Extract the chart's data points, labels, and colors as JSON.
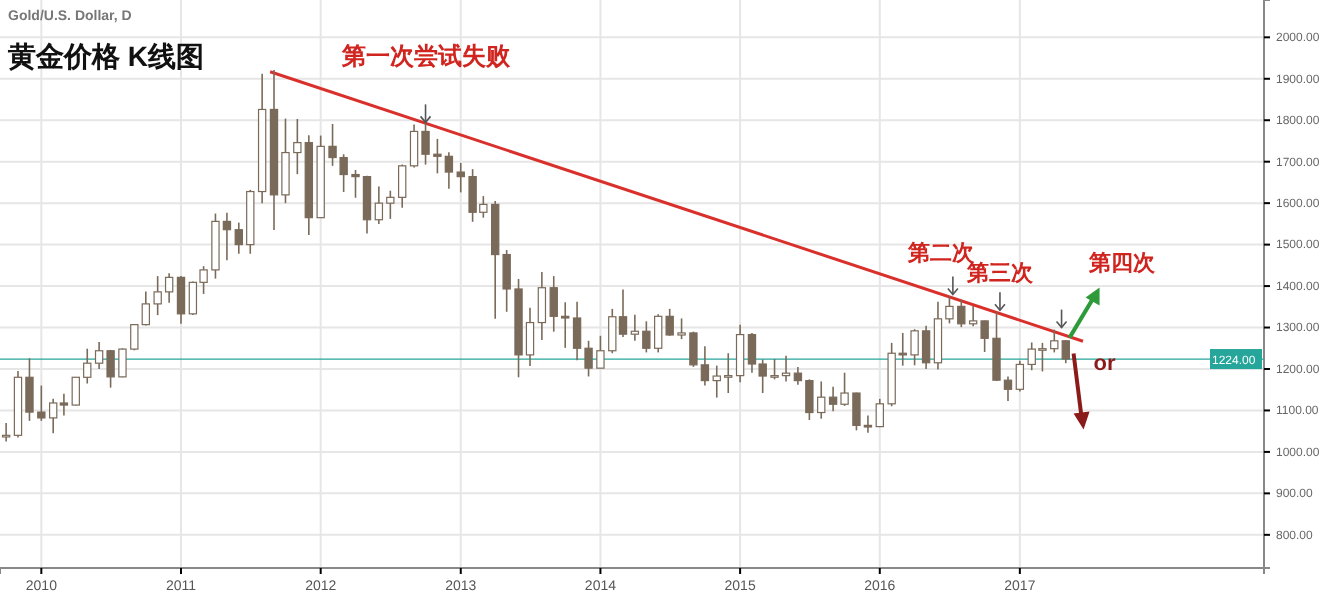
{
  "chart_data": {
    "type": "candlestick",
    "title": "黄金价格 K线图",
    "subtitle": "Gold/U.S. Dollar, D",
    "series": [
      {
        "type": "candlestick",
        "color": "#7a6a5a",
        "x": [
          "2009-10",
          "2009-11",
          "2009-12",
          "2010-01",
          "2010-02",
          "2010-03",
          "2010-04",
          "2010-05",
          "2010-06",
          "2010-07",
          "2010-08",
          "2010-09",
          "2010-10",
          "2010-11",
          "2010-12",
          "2011-01",
          "2011-02",
          "2011-03",
          "2011-04",
          "2011-05",
          "2011-06",
          "2011-07",
          "2011-08",
          "2011-09",
          "2011-10",
          "2011-11",
          "2011-12",
          "2012-01",
          "2012-02",
          "2012-03",
          "2012-04",
          "2012-05",
          "2012-06",
          "2012-07",
          "2012-08",
          "2012-09",
          "2012-10",
          "2012-11",
          "2012-12",
          "2013-01",
          "2013-02",
          "2013-03",
          "2013-04",
          "2013-05",
          "2013-06",
          "2013-07",
          "2013-08",
          "2013-09",
          "2013-10",
          "2013-11",
          "2013-12",
          "2014-01",
          "2014-02",
          "2014-03",
          "2014-04",
          "2014-05",
          "2014-06",
          "2014-07",
          "2014-08",
          "2014-09",
          "2014-10",
          "2014-11",
          "2014-12",
          "2015-01",
          "2015-02",
          "2015-03",
          "2015-04",
          "2015-05",
          "2015-06",
          "2015-07",
          "2015-08",
          "2015-09",
          "2015-10",
          "2015-11",
          "2015-12",
          "2016-01",
          "2016-02",
          "2016-03",
          "2016-04",
          "2016-05",
          "2016-06",
          "2016-07",
          "2016-08",
          "2016-09",
          "2016-10",
          "2016-11",
          "2016-12",
          "2017-01",
          "2017-02",
          "2017-03",
          "2017-04",
          "2017-05"
        ],
        "ohlc": [
          [
            1040,
            1070,
            1025,
            1040
          ],
          [
            1040,
            1195,
            1035,
            1180
          ],
          [
            1180,
            1226,
            1075,
            1096
          ],
          [
            1096,
            1160,
            1075,
            1082
          ],
          [
            1082,
            1128,
            1045,
            1118
          ],
          [
            1118,
            1140,
            1088,
            1113
          ],
          [
            1113,
            1180,
            1112,
            1180
          ],
          [
            1180,
            1249,
            1165,
            1214
          ],
          [
            1214,
            1265,
            1200,
            1244
          ],
          [
            1244,
            1246,
            1155,
            1181
          ],
          [
            1181,
            1250,
            1180,
            1248
          ],
          [
            1248,
            1308,
            1245,
            1307
          ],
          [
            1307,
            1387,
            1305,
            1357
          ],
          [
            1357,
            1424,
            1330,
            1386
          ],
          [
            1386,
            1431,
            1360,
            1421
          ],
          [
            1421,
            1424,
            1309,
            1333
          ],
          [
            1333,
            1411,
            1330,
            1409
          ],
          [
            1409,
            1448,
            1381,
            1439
          ],
          [
            1439,
            1575,
            1418,
            1556
          ],
          [
            1556,
            1577,
            1462,
            1536
          ],
          [
            1536,
            1553,
            1478,
            1500
          ],
          [
            1500,
            1632,
            1478,
            1628
          ],
          [
            1628,
            1912,
            1600,
            1826
          ],
          [
            1826,
            1921,
            1535,
            1620
          ],
          [
            1620,
            1804,
            1600,
            1722
          ],
          [
            1722,
            1803,
            1670,
            1746
          ],
          [
            1746,
            1764,
            1523,
            1565
          ],
          [
            1565,
            1763,
            1565,
            1737
          ],
          [
            1737,
            1791,
            1690,
            1710
          ],
          [
            1710,
            1718,
            1627,
            1669
          ],
          [
            1669,
            1680,
            1613,
            1664
          ],
          [
            1664,
            1666,
            1527,
            1560
          ],
          [
            1560,
            1640,
            1550,
            1600
          ],
          [
            1600,
            1630,
            1562,
            1614
          ],
          [
            1614,
            1693,
            1589,
            1690
          ],
          [
            1690,
            1790,
            1686,
            1773
          ],
          [
            1773,
            1796,
            1693,
            1718
          ],
          [
            1718,
            1755,
            1672,
            1713
          ],
          [
            1713,
            1723,
            1635,
            1675
          ],
          [
            1675,
            1697,
            1626,
            1664
          ],
          [
            1664,
            1682,
            1555,
            1578
          ],
          [
            1578,
            1617,
            1565,
            1597
          ],
          [
            1597,
            1605,
            1321,
            1476
          ],
          [
            1476,
            1487,
            1338,
            1393
          ],
          [
            1393,
            1417,
            1180,
            1234
          ],
          [
            1234,
            1348,
            1207,
            1312
          ],
          [
            1312,
            1434,
            1270,
            1396
          ],
          [
            1396,
            1424,
            1290,
            1327
          ],
          [
            1327,
            1361,
            1251,
            1323
          ],
          [
            1323,
            1362,
            1221,
            1250
          ],
          [
            1250,
            1268,
            1182,
            1202
          ],
          [
            1202,
            1280,
            1202,
            1244
          ],
          [
            1244,
            1345,
            1238,
            1326
          ],
          [
            1326,
            1392,
            1277,
            1284
          ],
          [
            1284,
            1331,
            1268,
            1291
          ],
          [
            1291,
            1315,
            1240,
            1250
          ],
          [
            1250,
            1332,
            1240,
            1327
          ],
          [
            1327,
            1345,
            1280,
            1282
          ],
          [
            1282,
            1322,
            1272,
            1287
          ],
          [
            1287,
            1290,
            1205,
            1210
          ],
          [
            1210,
            1255,
            1160,
            1172
          ],
          [
            1172,
            1208,
            1131,
            1183
          ],
          [
            1183,
            1238,
            1142,
            1184
          ],
          [
            1184,
            1307,
            1168,
            1283
          ],
          [
            1283,
            1287,
            1191,
            1212
          ],
          [
            1212,
            1223,
            1142,
            1183
          ],
          [
            1183,
            1224,
            1175,
            1184
          ],
          [
            1184,
            1232,
            1170,
            1190
          ],
          [
            1190,
            1205,
            1162,
            1172
          ],
          [
            1172,
            1175,
            1077,
            1095
          ],
          [
            1095,
            1170,
            1080,
            1132
          ],
          [
            1132,
            1157,
            1098,
            1115
          ],
          [
            1115,
            1191,
            1111,
            1142
          ],
          [
            1142,
            1143,
            1052,
            1064
          ],
          [
            1064,
            1088,
            1046,
            1061
          ],
          [
            1061,
            1128,
            1060,
            1116
          ],
          [
            1116,
            1263,
            1110,
            1238
          ],
          [
            1238,
            1287,
            1208,
            1234
          ],
          [
            1234,
            1296,
            1209,
            1292
          ],
          [
            1292,
            1304,
            1200,
            1215
          ],
          [
            1215,
            1362,
            1199,
            1321
          ],
          [
            1321,
            1375,
            1310,
            1351
          ],
          [
            1351,
            1367,
            1301,
            1309
          ],
          [
            1309,
            1352,
            1303,
            1316
          ],
          [
            1316,
            1317,
            1241,
            1274
          ],
          [
            1274,
            1337,
            1171,
            1173
          ],
          [
            1173,
            1182,
            1123,
            1151
          ],
          [
            1151,
            1220,
            1146,
            1211
          ],
          [
            1211,
            1264,
            1197,
            1248
          ],
          [
            1248,
            1263,
            1194,
            1249
          ],
          [
            1249,
            1295,
            1240,
            1268
          ],
          [
            1268,
            1270,
            1214,
            1224
          ]
        ]
      },
      {
        "type": "line",
        "color": "#d9302c",
        "x": [
          "2011-08-22",
          "2017-06-15"
        ],
        "values": [
          1917,
          1267
        ]
      }
    ],
    "xlim": [
      "2009-09-15",
      "2018-10-01"
    ],
    "xticks": [
      "2010",
      "2011",
      "2012",
      "2013",
      "2014",
      "2015",
      "2016",
      "2017"
    ],
    "ylim": [
      720,
      2090
    ],
    "yticks": [
      {
        "value": 800,
        "label": "800.00"
      },
      {
        "value": 900,
        "label": "900.00"
      },
      {
        "value": 1000,
        "label": "1000.00"
      },
      {
        "value": 1100,
        "label": "1100.00"
      },
      {
        "value": 1200,
        "label": "1200.00"
      },
      {
        "value": 1300,
        "label": "1300.00"
      },
      {
        "value": 1400,
        "label": "1400.00"
      },
      {
        "value": 1500,
        "label": "1500.00"
      },
      {
        "value": 1600,
        "label": "1600.00"
      },
      {
        "value": 1700,
        "label": "1700.00"
      },
      {
        "value": 1800,
        "label": "1800.00"
      },
      {
        "value": 1900,
        "label": "1900.00"
      },
      {
        "value": 2000,
        "label": "2000.00"
      }
    ],
    "grid": true,
    "ref_lines": [
      {
        "axis": "y",
        "value": 1224,
        "label": "1224.00",
        "color": "#26a69a"
      }
    ],
    "annotations": [
      {
        "text": "第一次尝试失败",
        "x": "2012-10-01",
        "y": 1790
      },
      {
        "text": "第二次",
        "x": "2016-07-10",
        "y": 1375
      },
      {
        "text": "第三次",
        "x": "2016-11-10",
        "y": 1337
      },
      {
        "text": "第四次",
        "x": "2017-04-20",
        "y": 1295
      },
      "or"
    ]
  }
}
